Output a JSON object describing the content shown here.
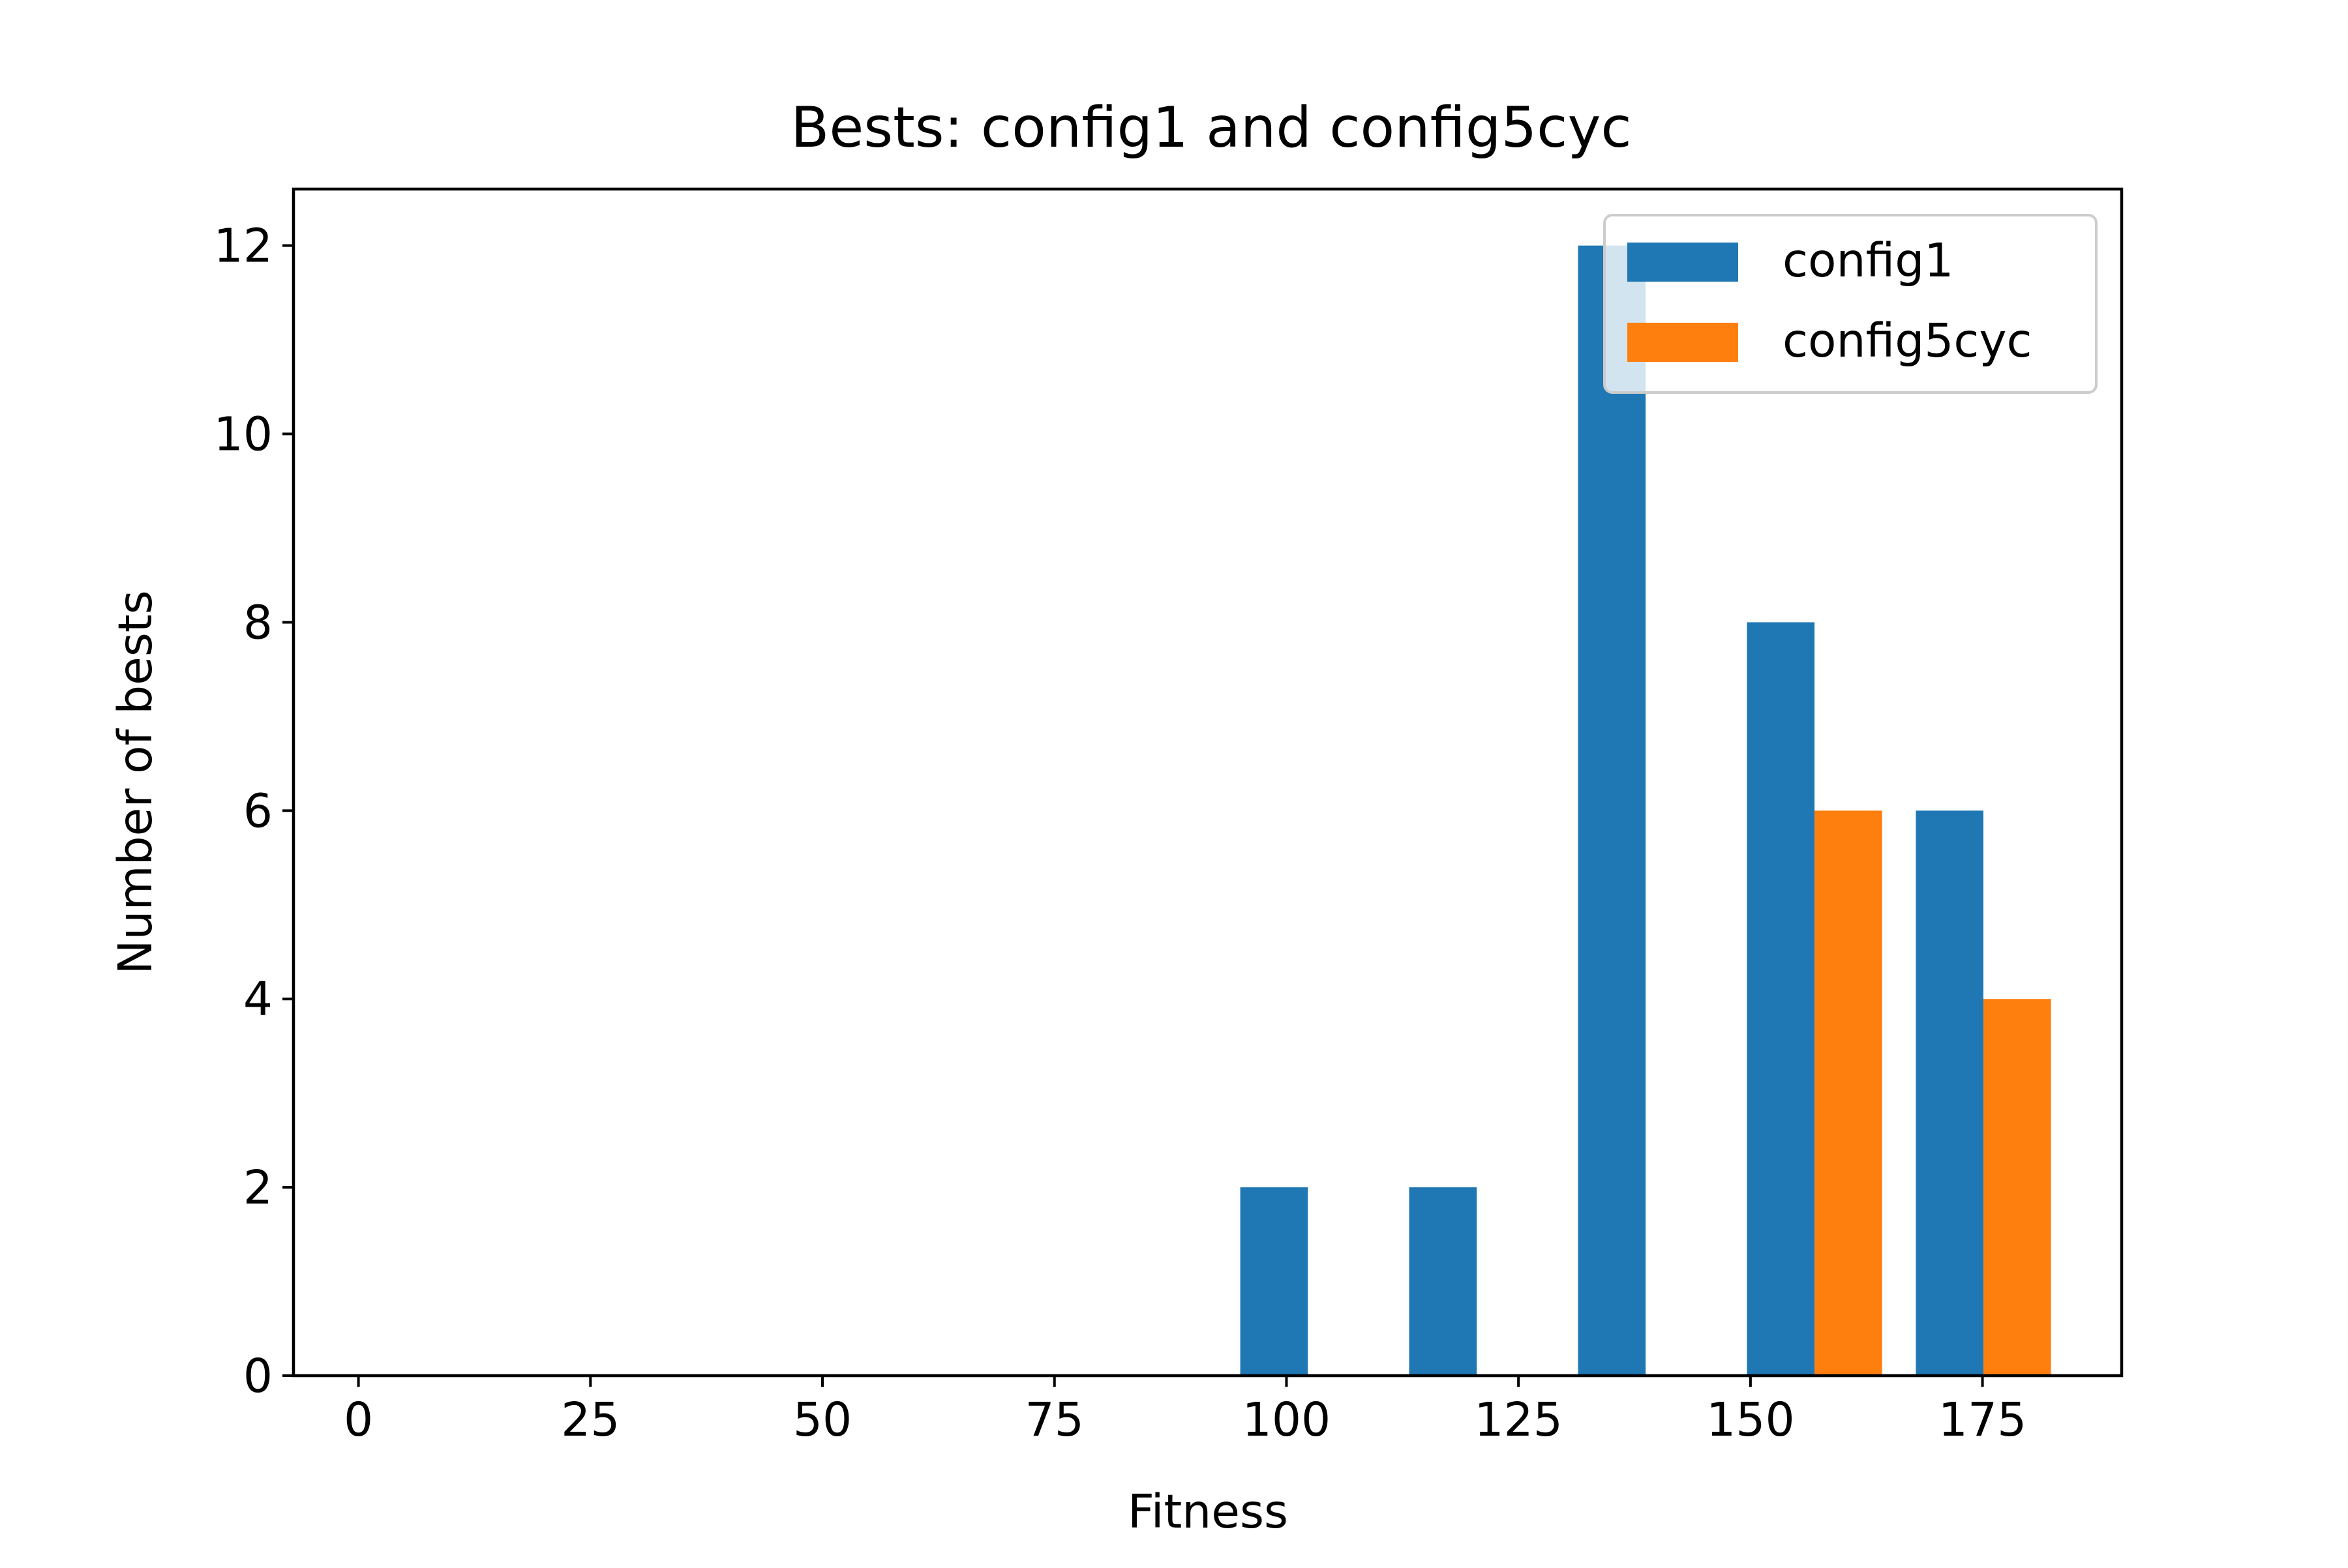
{
  "chart_data": {
    "type": "bar",
    "title": "Bests: config1 and config5cyc",
    "xlabel": "Fitness",
    "ylabel": "Number of bests",
    "xlim": [
      -7,
      190
    ],
    "ylim": [
      0,
      12.6
    ],
    "xticks": [
      0,
      25,
      50,
      75,
      100,
      125,
      150,
      175
    ],
    "xtick_labels": [
      "0",
      "25",
      "50",
      "75",
      "100",
      "125",
      "150",
      "175"
    ],
    "yticks": [
      0,
      2,
      4,
      6,
      8,
      10,
      12
    ],
    "ytick_labels": [
      "0",
      "2",
      "4",
      "6",
      "8",
      "10",
      "12"
    ],
    "grid": false,
    "legend": {
      "position": "upper right"
    },
    "bin_edges": [
      93.2,
      111.4,
      129.6,
      147.8,
      166.0,
      184.2
    ],
    "series": [
      {
        "name": "config1",
        "color": "#1f77b4",
        "values": [
          2,
          2,
          12,
          8,
          6
        ]
      },
      {
        "name": "config5cyc",
        "color": "#ff7f0e",
        "values": [
          0,
          0,
          0,
          6,
          4
        ]
      }
    ]
  }
}
